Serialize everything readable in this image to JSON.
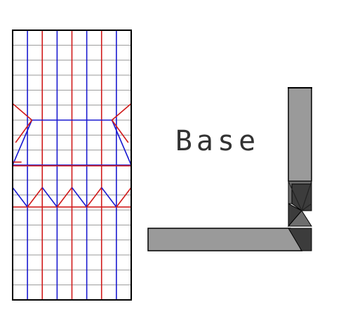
{
  "labels": {
    "base": "Base"
  },
  "colors": {
    "background": "#ffffff",
    "paper_edge": "#000000",
    "grid": "#9a9a9a",
    "mountain_fold": "#d01a1a",
    "valley_fold": "#1a1ad0",
    "model_light": "#9a9a9a",
    "model_mid": "#6e6e6e",
    "model_dark": "#3c3c3c",
    "model_outline": "#000000"
  }
}
